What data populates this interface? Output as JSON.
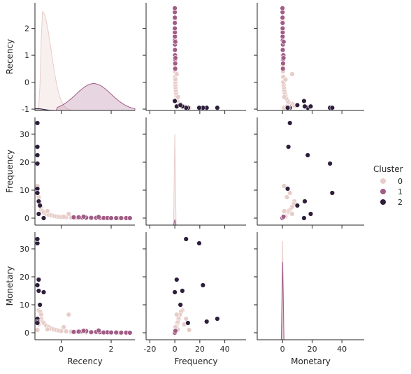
{
  "chart_data": {
    "type": "scatter",
    "variables": [
      "Recency",
      "Frequency",
      "Monetary"
    ],
    "hue": "Cluster",
    "legend": {
      "title": "Cluster",
      "placement": "right",
      "entries": [
        {
          "label": "0",
          "color": "#e7cdc9"
        },
        {
          "label": "1",
          "color": "#a15c86"
        },
        {
          "label": "2",
          "color": "#2e1e3b"
        }
      ]
    },
    "axes": {
      "Recency": {
        "ticks": [
          -1,
          0,
          1,
          2
        ],
        "bottom_ticks": [
          0,
          2
        ],
        "lim": [
          -1.05,
          2.95
        ]
      },
      "Frequency": {
        "ticks": [
          0,
          10,
          20,
          30
        ],
        "bottom_ticks": [
          -20,
          0,
          20,
          40
        ],
        "lim": [
          -2.5,
          36
        ],
        "xlim": [
          -23,
          57
        ]
      },
      "Monetary": {
        "ticks": [
          0,
          10,
          20,
          30
        ],
        "bottom_ticks": [
          0,
          20,
          40
        ],
        "lim": [
          -2.5,
          36
        ],
        "xlim": [
          -17,
          55
        ]
      }
    },
    "diagonal": {
      "Recency": [
        {
          "cluster": "0",
          "peak_x": -0.75,
          "peak_height": 2.75
        },
        {
          "cluster": "1",
          "peak_x": 1.3,
          "peak_height": 0.75
        },
        {
          "cluster": "2",
          "peak_x": -0.95,
          "peak_height": 0.05
        }
      ],
      "Frequency": [
        {
          "cluster": "0",
          "peak_x": 0.1,
          "peak_height": 33
        },
        {
          "cluster": "1",
          "peak_x": 0.1,
          "peak_height": 2
        }
      ],
      "Monetary": [
        {
          "cluster": "0",
          "peak_x": 0.1,
          "peak_height": 33
        },
        {
          "cluster": "1",
          "peak_x": 0.1,
          "peak_height": 26
        }
      ]
    },
    "cluster2_points": [
      {
        "Recency": -0.95,
        "Frequency": 34,
        "Monetary": 5
      },
      {
        "Recency": -0.95,
        "Frequency": 25.5,
        "Monetary": 4
      },
      {
        "Recency": -0.95,
        "Frequency": 22.5,
        "Monetary": 17
      },
      {
        "Recency": -0.95,
        "Frequency": 19.5,
        "Monetary": 32
      },
      {
        "Recency": -0.95,
        "Frequency": 10.5,
        "Monetary": 3.5
      },
      {
        "Recency": -0.95,
        "Frequency": 9,
        "Monetary": 33.5
      },
      {
        "Recency": -0.9,
        "Frequency": 6,
        "Monetary": 15
      },
      {
        "Recency": -0.9,
        "Frequency": 1.5,
        "Monetary": 19
      },
      {
        "Recency": -0.85,
        "Frequency": 4.5,
        "Monetary": 10
      },
      {
        "Recency": -0.7,
        "Frequency": 0,
        "Monetary": 14.5
      }
    ],
    "cluster0_points": [
      {
        "Recency": -0.95,
        "Frequency": 11.5,
        "Monetary": 1
      },
      {
        "Recency": -0.9,
        "Frequency": 7.5,
        "Monetary": 3
      },
      {
        "Recency": -0.9,
        "Frequency": 6,
        "Monetary": 8
      },
      {
        "Recency": -0.85,
        "Frequency": 5,
        "Monetary": 7.5
      },
      {
        "Recency": -0.8,
        "Frequency": 4,
        "Monetary": 6.5
      },
      {
        "Recency": -0.8,
        "Frequency": 3,
        "Monetary": 5
      },
      {
        "Recency": -0.75,
        "Frequency": 2.5,
        "Monetary": 4
      },
      {
        "Recency": -0.7,
        "Frequency": 2,
        "Monetary": 3.5
      },
      {
        "Recency": -0.6,
        "Frequency": 1.5,
        "Monetary": 2.5
      },
      {
        "Recency": -0.5,
        "Frequency": 1.2,
        "Monetary": 2
      },
      {
        "Recency": -0.4,
        "Frequency": 1,
        "Monetary": 1.5
      },
      {
        "Recency": -0.3,
        "Frequency": 0.8,
        "Monetary": 1.2
      },
      {
        "Recency": -0.2,
        "Frequency": 0.6,
        "Monetary": 1
      },
      {
        "Recency": -0.1,
        "Frequency": 0.5,
        "Monetary": 0.8
      },
      {
        "Recency": 0.0,
        "Frequency": 0.4,
        "Monetary": 0.6
      },
      {
        "Recency": 0.2,
        "Frequency": 0.3,
        "Monetary": 0.5
      },
      {
        "Recency": 0.4,
        "Frequency": 0.2,
        "Monetary": 0.4
      },
      {
        "Recency": 0.6,
        "Frequency": 0.1,
        "Monetary": 0.3
      },
      {
        "Recency": 0.8,
        "Frequency": 0.1,
        "Monetary": 0.2
      },
      {
        "Recency": 1.0,
        "Frequency": 0.05,
        "Monetary": 0.1
      },
      {
        "Recency": 1.2,
        "Frequency": 0.05,
        "Monetary": 0.1
      },
      {
        "Recency": 1.4,
        "Frequency": 0.0,
        "Monetary": 0.1
      },
      {
        "Recency": 1.6,
        "Frequency": 0.0,
        "Monetary": 0.05
      },
      {
        "Recency": 1.9,
        "Frequency": 0.0,
        "Monetary": 0.05
      },
      {
        "Recency": 2.3,
        "Frequency": 0.0,
        "Monetary": 0.0
      },
      {
        "Recency": 2.6,
        "Frequency": 0.0,
        "Monetary": 0.0
      },
      {
        "Recency": 0.3,
        "Frequency": 1.5,
        "Monetary": 6.5
      },
      {
        "Recency": -0.55,
        "Frequency": 2.5,
        "Monetary": 1.2
      },
      {
        "Recency": -0.95,
        "Frequency": 9,
        "Monetary": 5
      },
      {
        "Recency": 0.1,
        "Frequency": 0.5,
        "Monetary": 2
      }
    ],
    "cluster1_points": [
      {
        "Recency": 0.5,
        "Frequency": 0.3,
        "Monetary": 0.3
      },
      {
        "Recency": 0.7,
        "Frequency": 0.3,
        "Monetary": 0.4
      },
      {
        "Recency": 0.85,
        "Frequency": 0.2,
        "Monetary": 0.5
      },
      {
        "Recency": 1.0,
        "Frequency": 0.15,
        "Monetary": 0.6
      },
      {
        "Recency": 1.2,
        "Frequency": 0.1,
        "Monetary": 0.2
      },
      {
        "Recency": 1.4,
        "Frequency": 0.1,
        "Monetary": 0.3
      },
      {
        "Recency": 1.55,
        "Frequency": 0.05,
        "Monetary": 0.2
      },
      {
        "Recency": 1.7,
        "Frequency": 0.05,
        "Monetary": 0.1
      },
      {
        "Recency": 1.85,
        "Frequency": 0.05,
        "Monetary": 0.15
      },
      {
        "Recency": 2.0,
        "Frequency": 0.0,
        "Monetary": 0.1
      },
      {
        "Recency": 2.2,
        "Frequency": 0.0,
        "Monetary": 0.1
      },
      {
        "Recency": 2.4,
        "Frequency": 0.0,
        "Monetary": 0.05
      },
      {
        "Recency": 2.6,
        "Frequency": 0.0,
        "Monetary": 0.05
      },
      {
        "Recency": 2.75,
        "Frequency": 0.0,
        "Monetary": 0.0
      },
      {
        "Recency": 1.5,
        "Frequency": 0.4,
        "Monetary": 0.8
      },
      {
        "Recency": 0.9,
        "Frequency": 0.5,
        "Monetary": 0.7
      }
    ]
  }
}
